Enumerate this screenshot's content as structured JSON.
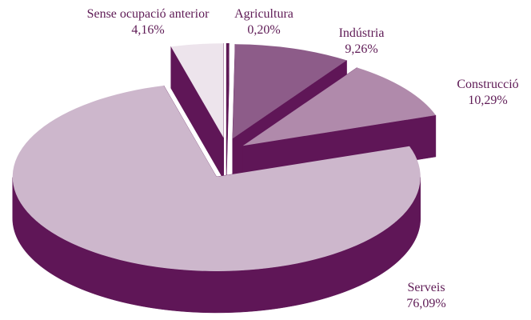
{
  "chart_data": {
    "type": "pie3d",
    "categories": [
      "Agricultura",
      "Indústria",
      "Construcció",
      "Serveis",
      "Sense ocupació anterior"
    ],
    "values": [
      0.2,
      9.26,
      10.29,
      76.09,
      4.16
    ],
    "value_labels": [
      "0,20%",
      "9,26%",
      "10,29%",
      "76,09%",
      "4,16%"
    ],
    "colors": [
      "#5e1a55",
      "#8d5c89",
      "#b08aab",
      "#cdb7cc",
      "#ede4ec"
    ],
    "side_color": "#5f1657"
  }
}
